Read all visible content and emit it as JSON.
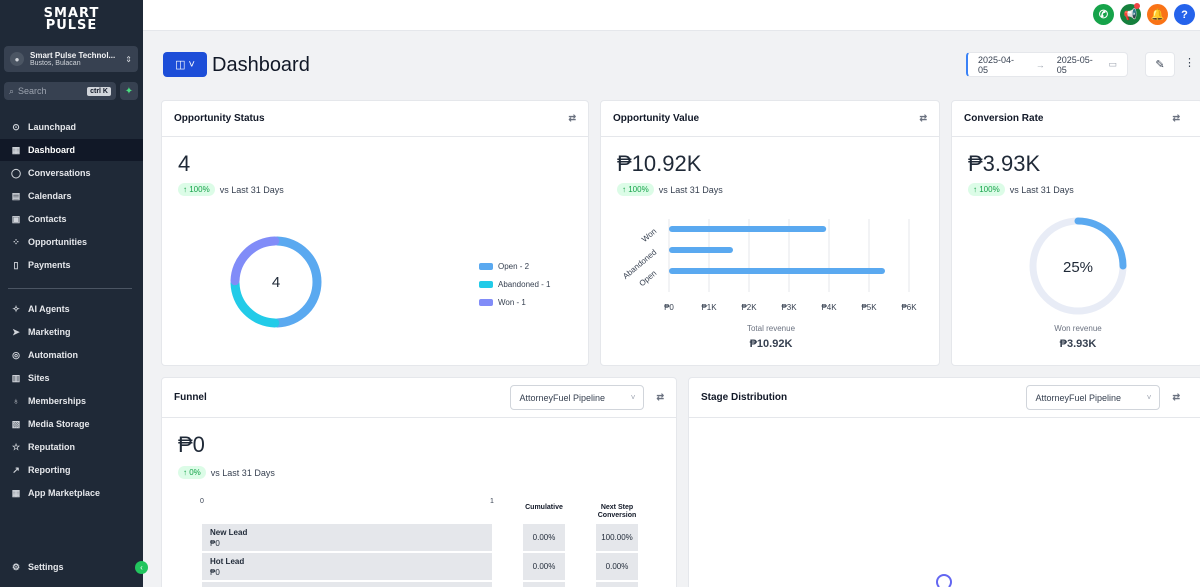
{
  "sidebar": {
    "logo_line1": "SMART",
    "logo_line2": "PULSE",
    "account_name": "Smart Pulse Technol...",
    "account_location": "Bustos, Bulacan",
    "search_placeholder": "Search",
    "search_shortcut": "ctrl K",
    "items": [
      {
        "label": "Launchpad",
        "icon": "rocket-icon"
      },
      {
        "label": "Dashboard",
        "icon": "grid-icon"
      },
      {
        "label": "Conversations",
        "icon": "chat-icon"
      },
      {
        "label": "Calendars",
        "icon": "calendar-icon"
      },
      {
        "label": "Contacts",
        "icon": "contacts-icon"
      },
      {
        "label": "Opportunities",
        "icon": "network-icon"
      },
      {
        "label": "Payments",
        "icon": "receipt-icon"
      },
      {
        "label": "AI Agents",
        "icon": "sparkle-icon"
      },
      {
        "label": "Marketing",
        "icon": "send-icon"
      },
      {
        "label": "Automation",
        "icon": "automation-icon"
      },
      {
        "label": "Sites",
        "icon": "sites-icon"
      },
      {
        "label": "Memberships",
        "icon": "membership-icon"
      },
      {
        "label": "Media Storage",
        "icon": "image-icon"
      },
      {
        "label": "Reputation",
        "icon": "star-icon"
      },
      {
        "label": "Reporting",
        "icon": "trend-icon"
      },
      {
        "label": "App Marketplace",
        "icon": "apps-icon"
      }
    ],
    "settings_label": "Settings"
  },
  "topbar": {
    "help_label": "?"
  },
  "header": {
    "title": "Dashboard",
    "date_from": "2025-04-05",
    "date_to": "2025-05-05"
  },
  "opportunity_status": {
    "title": "Opportunity Status",
    "value": "4",
    "delta": "↑ 100%",
    "delta_text": "vs Last 31 Days",
    "center_label": "4",
    "legend": [
      {
        "label": "Open - 2",
        "color": "#5aa9f0"
      },
      {
        "label": "Abandoned - 1",
        "color": "#22cbe8"
      },
      {
        "label": "Won - 1",
        "color": "#818cf8"
      }
    ]
  },
  "opportunity_value": {
    "title": "Opportunity Value",
    "value": "₱10.92K",
    "delta": "↑ 100%",
    "delta_text": "vs Last 31 Days",
    "xlabel": "Total revenue",
    "total": "₱10.92K"
  },
  "conversion_rate": {
    "title": "Conversion Rate",
    "value": "₱3.93K",
    "delta": "↑ 100%",
    "delta_text": "vs Last 31 Days",
    "gauge_label": "25%",
    "gauge_fraction": 0.25,
    "sublabel": "Won revenue",
    "subvalue": "₱3.93K"
  },
  "funnel": {
    "title": "Funnel",
    "pipeline": "AttorneyFuel Pipeline",
    "value": "₱0",
    "delta": "↑ 0%",
    "delta_text": "vs Last 31 Days",
    "axis_min": "0",
    "axis_max": "1",
    "col_cumulative": "Cumulative",
    "col_next_line1": "Next Step",
    "col_next_line2": "Conversion",
    "rows": [
      {
        "stage": "New Lead",
        "value": "₱0",
        "cumulative": "0.00%",
        "next": "100.00%"
      },
      {
        "stage": "Hot Lead",
        "value": "₱0",
        "cumulative": "0.00%",
        "next": "0.00%"
      }
    ]
  },
  "stage_distribution": {
    "title": "Stage Distribution",
    "pipeline": "AttorneyFuel Pipeline"
  },
  "chart_data": [
    {
      "type": "pie",
      "title": "Opportunity Status",
      "categories": [
        "Open",
        "Abandoned",
        "Won"
      ],
      "values": [
        2,
        1,
        1
      ],
      "colors": [
        "#5aa9f0",
        "#22cbe8",
        "#818cf8"
      ]
    },
    {
      "type": "bar",
      "orientation": "horizontal",
      "title": "Opportunity Value",
      "categories": [
        "Won",
        "Abandoned",
        "Open"
      ],
      "values": [
        3930,
        1600,
        5400
      ],
      "xlabel": "Total revenue",
      "xlim": [
        0,
        6000
      ],
      "xticks": [
        "₱0",
        "₱1K",
        "₱2K",
        "₱3K",
        "₱4K",
        "₱5K",
        "₱6K"
      ],
      "color": "#5aa9f0"
    }
  ]
}
